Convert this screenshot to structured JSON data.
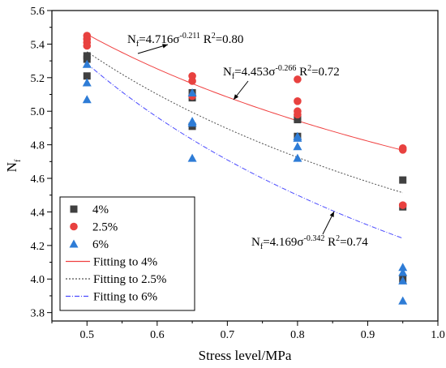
{
  "chart_data": {
    "type": "scatter",
    "xlabel": "Stress level/MPa",
    "ylabel": "N",
    "ylabel_sub": "f",
    "xlim": [
      0.45,
      1.0
    ],
    "ylim": [
      3.75,
      5.6
    ],
    "xticks": [
      0.5,
      0.6,
      0.7,
      0.8,
      0.9,
      1.0
    ],
    "xtick_labels": [
      "0.5",
      "0.6",
      "0.7",
      "0.8",
      "0.9",
      "1.0"
    ],
    "yticks": [
      3.8,
      4.0,
      4.2,
      4.4,
      4.6,
      4.8,
      5.0,
      5.2,
      5.4,
      5.6
    ],
    "ytick_labels": [
      "3.8",
      "4.0",
      "4.2",
      "4.4",
      "4.6",
      "4.8",
      "5.0",
      "5.2",
      "5.4",
      "5.6"
    ],
    "grid": false,
    "legend_position": "bottom-left",
    "series": [
      {
        "name": "4%",
        "marker": "square",
        "color": "#404040",
        "x": [
          0.5,
          0.5,
          0.5,
          0.65,
          0.65,
          0.65,
          0.8,
          0.8,
          0.8,
          0.95,
          0.95,
          0.95
        ],
        "y": [
          5.33,
          5.31,
          5.21,
          5.11,
          5.08,
          4.91,
          4.96,
          4.95,
          4.85,
          4.59,
          4.43,
          4.0
        ]
      },
      {
        "name": "2.5%",
        "marker": "circle",
        "color": "#e8413f",
        "x": [
          0.5,
          0.5,
          0.5,
          0.5,
          0.65,
          0.65,
          0.65,
          0.8,
          0.8,
          0.8,
          0.8,
          0.95,
          0.95,
          0.95
        ],
        "y": [
          5.45,
          5.43,
          5.41,
          5.39,
          5.21,
          5.18,
          5.09,
          5.19,
          5.06,
          5.0,
          4.98,
          4.78,
          4.77,
          4.44
        ]
      },
      {
        "name": "6%",
        "marker": "triangle",
        "color": "#2e7cd6",
        "x": [
          0.5,
          0.5,
          0.5,
          0.65,
          0.65,
          0.65,
          0.65,
          0.8,
          0.8,
          0.8,
          0.8,
          0.95,
          0.95,
          0.95,
          0.95
        ],
        "y": [
          5.28,
          5.17,
          5.07,
          5.11,
          4.94,
          4.93,
          4.72,
          4.85,
          4.84,
          4.79,
          4.72,
          4.07,
          4.04,
          3.99,
          3.87
        ]
      }
    ],
    "fits": [
      {
        "name": "Fitting to 4%",
        "a": 4.716,
        "b": -0.211,
        "r2": "0.80",
        "color": "#f04040",
        "dash": "",
        "label_main": "N",
        "label_sub": "f",
        "label_eq": "=4.716σ",
        "label_exp": "-0.211",
        "label_r": " R",
        "label_r2": "=0.80"
      },
      {
        "name": "Fitting to 2.5%",
        "a": 4.453,
        "b": -0.266,
        "r2": "0.72",
        "color": "#505050",
        "dash": "2,2",
        "label_main": "N",
        "label_sub": "f",
        "label_eq": "=4.453σ",
        "label_exp": "-0.266",
        "label_r": " R",
        "label_r2": "=0.72"
      },
      {
        "name": "Fitting to 6%",
        "a": 4.169,
        "b": -0.342,
        "r2": "0.74",
        "color": "#4a4aff",
        "dash": "6,2,1,2",
        "label_main": "N",
        "label_sub": "f",
        "label_eq": "=4.169σ",
        "label_exp": "-0.342",
        "label_r": " R",
        "label_r2": "=0.74"
      }
    ],
    "legend": [
      "4%",
      "2.5%",
      "6%",
      "Fitting to 4%",
      "Fitting to 2.5%",
      "Fitting to 6%"
    ]
  }
}
